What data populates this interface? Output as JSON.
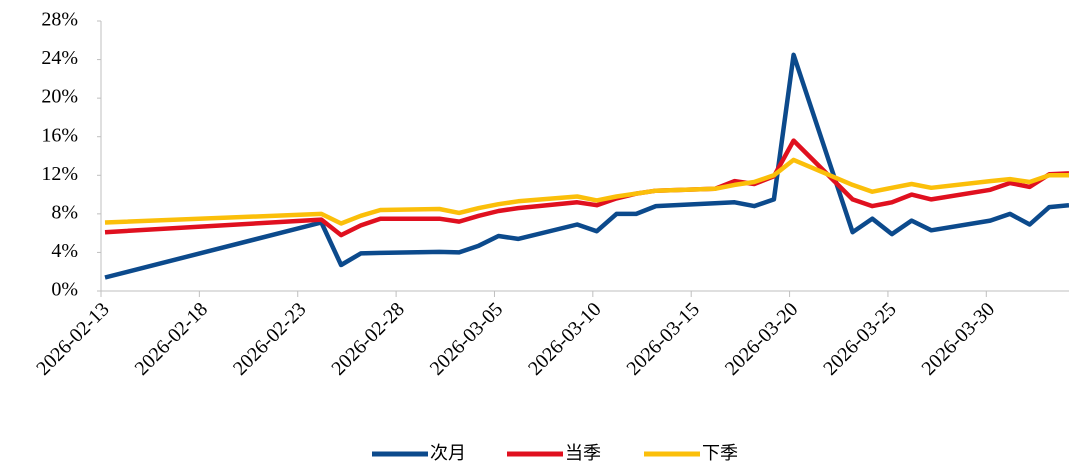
{
  "chart_data": {
    "type": "line",
    "x": [
      "2026-02-13",
      "2026-02-24",
      "2026-02-25",
      "2026-02-26",
      "2026-02-27",
      "2026-03-02",
      "2026-03-03",
      "2026-03-04",
      "2026-03-05",
      "2026-03-06",
      "2026-03-09",
      "2026-03-10",
      "2026-03-11",
      "2026-03-12",
      "2026-03-13",
      "2026-03-16",
      "2026-03-17",
      "2026-03-18",
      "2026-03-19",
      "2026-03-20",
      "2026-03-23",
      "2026-03-24",
      "2026-03-25",
      "2026-03-26",
      "2026-03-27",
      "2026-03-30",
      "2026-03-31",
      "2026-04-01",
      "2026-04-02",
      "2026-04-03"
    ],
    "series": [
      {
        "name": "次月",
        "color": "#0c4a8c",
        "values": [
          1.4,
          7.1,
          2.7,
          3.9,
          3.95,
          4.05,
          4.0,
          4.7,
          5.7,
          5.4,
          6.9,
          6.2,
          8.0,
          8.0,
          8.8,
          9.1,
          9.2,
          8.8,
          9.5,
          24.5,
          6.1,
          7.5,
          5.9,
          7.3,
          6.3,
          7.3,
          8.0,
          6.9,
          8.7,
          8.9
        ]
      },
      {
        "name": "当季",
        "color": "#e0101f",
        "values": [
          6.1,
          7.4,
          5.8,
          6.8,
          7.5,
          7.5,
          7.2,
          7.8,
          8.3,
          8.6,
          9.2,
          8.9,
          9.6,
          10.1,
          10.4,
          10.6,
          11.4,
          11.1,
          11.9,
          15.6,
          9.5,
          8.8,
          9.2,
          10.0,
          9.5,
          10.5,
          11.2,
          10.8,
          12.1,
          12.2
        ]
      },
      {
        "name": "下季",
        "color": "#fbbf0a",
        "values": [
          7.1,
          8.0,
          7.0,
          7.8,
          8.4,
          8.5,
          8.1,
          8.6,
          9.0,
          9.3,
          9.8,
          9.4,
          9.8,
          10.1,
          10.4,
          10.6,
          11.0,
          11.3,
          12.0,
          13.6,
          11.0,
          10.3,
          10.7,
          11.1,
          10.7,
          11.4,
          11.6,
          11.3,
          12.0,
          12.0
        ]
      }
    ],
    "xlim": [
      "2026-02-13",
      "2026-04-03"
    ],
    "xticks": [
      "2026-02-13",
      "2026-02-18",
      "2026-02-23",
      "2026-02-28",
      "2026-03-05",
      "2026-03-10",
      "2026-03-15",
      "2026-03-20",
      "2026-03-25",
      "2026-03-30"
    ],
    "ylim": [
      0,
      28
    ],
    "yticks": [
      {
        "value": 0,
        "label": "0%"
      },
      {
        "value": 4,
        "label": "4%"
      },
      {
        "value": 8,
        "label": "8%"
      },
      {
        "value": 12,
        "label": "12%"
      },
      {
        "value": 16,
        "label": "16%"
      },
      {
        "value": 20,
        "label": "20%"
      },
      {
        "value": 24,
        "label": "24%"
      },
      {
        "value": 28,
        "label": "28%"
      }
    ],
    "grid": false,
    "legend": "bottom"
  }
}
